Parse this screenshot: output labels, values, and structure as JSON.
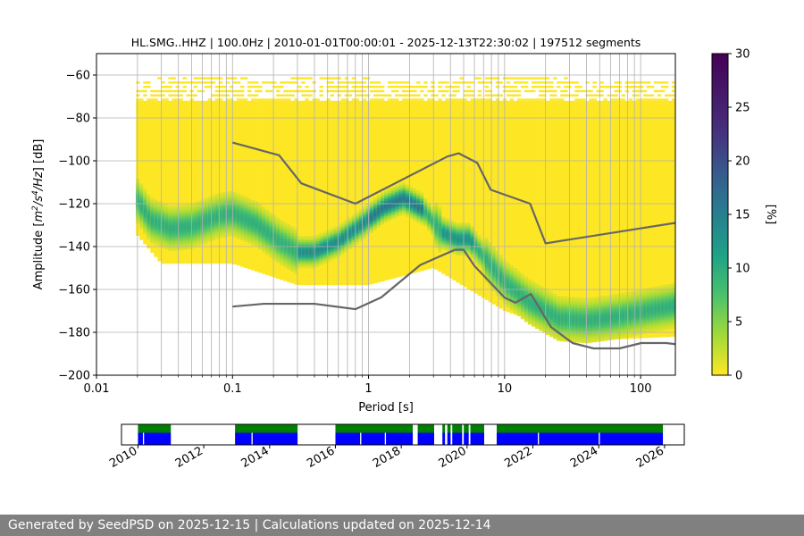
{
  "chart_data": [
    {
      "type": "heatmap",
      "title": "HL.SMG..HHZ | 100.0Hz | 2010-01-01T00:00:01 - 2025-12-13T22:30:02 | 197512 segments",
      "xlabel": "Period [s]",
      "ylabel_parts": [
        "Amplitude [",
        "m",
        "2",
        "/",
        "s",
        "4",
        "/",
        "Hz",
        "] [dB]"
      ],
      "xscale": "log",
      "xlim": [
        0.01,
        180
      ],
      "ylim": [
        -200,
        -50
      ],
      "grid": true,
      "x_ticks": [
        {
          "value": 0.01,
          "label": "0.01"
        },
        {
          "value": 0.1,
          "label": "0.1"
        },
        {
          "value": 1,
          "label": "1"
        },
        {
          "value": 10,
          "label": "10"
        },
        {
          "value": 100,
          "label": "100"
        }
      ],
      "y_ticks": [
        -60,
        -80,
        -100,
        -120,
        -140,
        -160,
        -180,
        -200
      ],
      "y_tick_labels": [
        "−60",
        "−80",
        "−100",
        "−120",
        "−140",
        "−160",
        "−180",
        "−200"
      ],
      "colorbar": {
        "label": "[%]",
        "range": [
          0,
          30
        ],
        "ticks": [
          0,
          5,
          10,
          15,
          20,
          25,
          30
        ],
        "colormap": "viridis"
      },
      "density_extent": {
        "period_range": [
          0.0195,
          180
        ],
        "upper_edge": [
          [
            0.0195,
            -63
          ],
          [
            0.05,
            -60
          ],
          [
            0.2,
            -63
          ],
          [
            0.5,
            -60
          ],
          [
            2,
            -64
          ],
          [
            10,
            -60
          ],
          [
            50,
            -63
          ],
          [
            180,
            -63
          ]
        ],
        "lower_edge": [
          [
            0.0195,
            -134
          ],
          [
            0.03,
            -148
          ],
          [
            0.1,
            -148
          ],
          [
            0.3,
            -158
          ],
          [
            1,
            -158
          ],
          [
            3,
            -150
          ],
          [
            10,
            -170
          ],
          [
            40,
            -184
          ],
          [
            180,
            -182
          ]
        ]
      },
      "mode_curve": [
        [
          0.0195,
          -118
        ],
        [
          0.025,
          -128
        ],
        [
          0.035,
          -132
        ],
        [
          0.05,
          -131
        ],
        [
          0.08,
          -126
        ],
        [
          0.1,
          -125
        ],
        [
          0.15,
          -130
        ],
        [
          0.22,
          -138
        ],
        [
          0.3,
          -143
        ],
        [
          0.4,
          -143
        ],
        [
          0.6,
          -138
        ],
        [
          0.9,
          -130
        ],
        [
          1.3,
          -122
        ],
        [
          1.8,
          -118
        ],
        [
          2.5,
          -123
        ],
        [
          3.5,
          -134
        ],
        [
          4.5,
          -137
        ],
        [
          5.5,
          -137
        ],
        [
          7,
          -145
        ],
        [
          10,
          -157
        ],
        [
          15,
          -166
        ],
        [
          25,
          -174
        ],
        [
          40,
          -175
        ],
        [
          70,
          -173
        ],
        [
          120,
          -170
        ],
        [
          180,
          -168
        ]
      ],
      "model_curves": [
        {
          "period": [
            0.1,
            0.22,
            0.32,
            0.8,
            3.8,
            4.6,
            6.3,
            7.9,
            15.4,
            20,
            354.8
          ],
          "db": [
            -91.5,
            -97.4,
            -110.5,
            -120,
            -98,
            -96.5,
            -101,
            -113.5,
            -120,
            -138.5,
            -126
          ]
        },
        {
          "period": [
            0.1,
            0.17,
            0.4,
            0.8,
            1.24,
            2.4,
            4.3,
            5,
            6,
            10,
            12,
            15.6,
            21.9,
            31.6,
            45,
            70,
            101,
            154,
            328
          ],
          "db": [
            -168,
            -166.7,
            -166.7,
            -169.2,
            -163.7,
            -148.6,
            -141.5,
            -141.5,
            -149,
            -163.8,
            -166.2,
            -162.1,
            -177.5,
            -185,
            -187.5,
            -187.5,
            -185,
            -185,
            -187.5
          ]
        }
      ]
    },
    {
      "type": "timeline",
      "xlim": [
        2009.5,
        2026.6
      ],
      "x_ticks": [
        2010,
        2012,
        2014,
        2016,
        2018,
        2020,
        2022,
        2024,
        2026
      ],
      "colors": {
        "top": "#008000",
        "bottom": "#0000ff"
      },
      "segments": [
        [
          2010.0,
          2011.0
        ],
        [
          2012.95,
          2014.85
        ],
        [
          2016.0,
          2018.35
        ],
        [
          2018.5,
          2019.0
        ],
        [
          2019.25,
          2019.33
        ],
        [
          2019.4,
          2019.5
        ],
        [
          2019.55,
          2019.85
        ],
        [
          2019.9,
          2020.05
        ],
        [
          2020.1,
          2020.52
        ],
        [
          2020.9,
          2025.95
        ]
      ],
      "bottom_gaps": [
        2010.15,
        2013.45,
        2016.75,
        2017.5,
        2022.15,
        2024.0
      ]
    }
  ],
  "footer": "Generated by SeedPSD on 2025-12-15 | Calculations updated on 2025-12-14"
}
